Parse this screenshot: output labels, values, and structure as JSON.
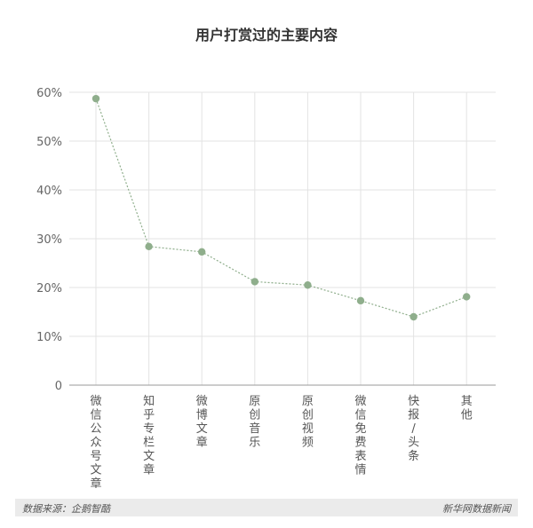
{
  "chart_data": {
    "type": "line",
    "title": "用户打赏过的主要内容",
    "categories": [
      "微信公众号文章",
      "知乎专栏文章",
      "微博文章",
      "原创音乐",
      "原创视频",
      "微信免费表情",
      "快报/头条",
      "其他"
    ],
    "values": [
      58.7,
      28.4,
      27.3,
      21.2,
      20.5,
      17.3,
      14.0,
      18.1
    ],
    "yticks": [
      "0",
      "10%",
      "20%",
      "30%",
      "40%",
      "50%",
      "60%"
    ],
    "ylim": [
      0,
      60
    ],
    "grid": true,
    "xlabel": "",
    "ylabel": ""
  },
  "colors": {
    "series": "#8fae8c",
    "title": "#333333",
    "footer_bg": "#ebebeb"
  },
  "footer": {
    "source": "数据来源：企鹅智酷",
    "brand": "新华网数据新闻"
  }
}
